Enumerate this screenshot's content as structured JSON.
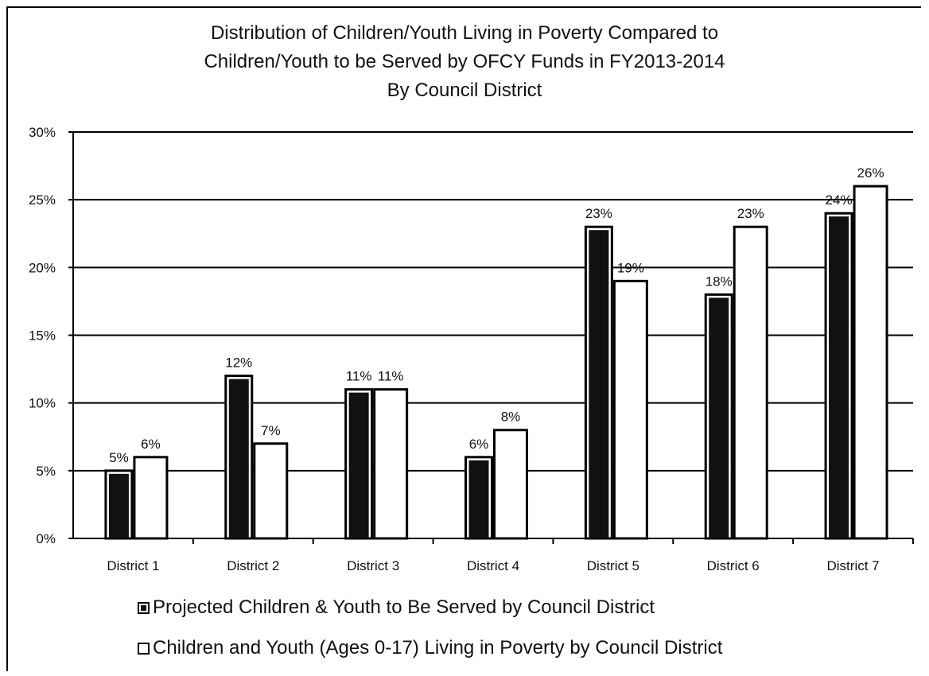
{
  "chart_data": {
    "type": "bar",
    "title": [
      "Distribution of Children/Youth Living in Poverty Compared to",
      "Children/Youth  to be Served by OFCY Funds in FY2013-2014",
      "By Council District"
    ],
    "categories": [
      "District 1",
      "District 2",
      "District 3",
      "District 4",
      "District 5",
      "District 6",
      "District 7"
    ],
    "series": [
      {
        "name": "Projected Children & Youth to Be Served by Council District",
        "values": [
          5,
          12,
          11,
          6,
          23,
          18,
          24
        ],
        "labels": [
          "5%",
          "12%",
          "11%",
          "6%",
          "23%",
          "18%",
          "24%"
        ],
        "color": "#111111"
      },
      {
        "name": "Children and Youth (Ages 0-17) Living in Poverty  by Council District",
        "values": [
          6,
          7,
          11,
          8,
          19,
          23,
          26
        ],
        "labels": [
          "6%",
          "7%",
          "11%",
          "8%",
          "19%",
          "23%",
          "26%"
        ],
        "color": "#ffffff"
      }
    ],
    "yticks": [
      "0%",
      "5%",
      "10%",
      "15%",
      "20%",
      "25%",
      "30%"
    ],
    "ylim": [
      0,
      30
    ],
    "grid": true,
    "legend_position": "bottom"
  }
}
